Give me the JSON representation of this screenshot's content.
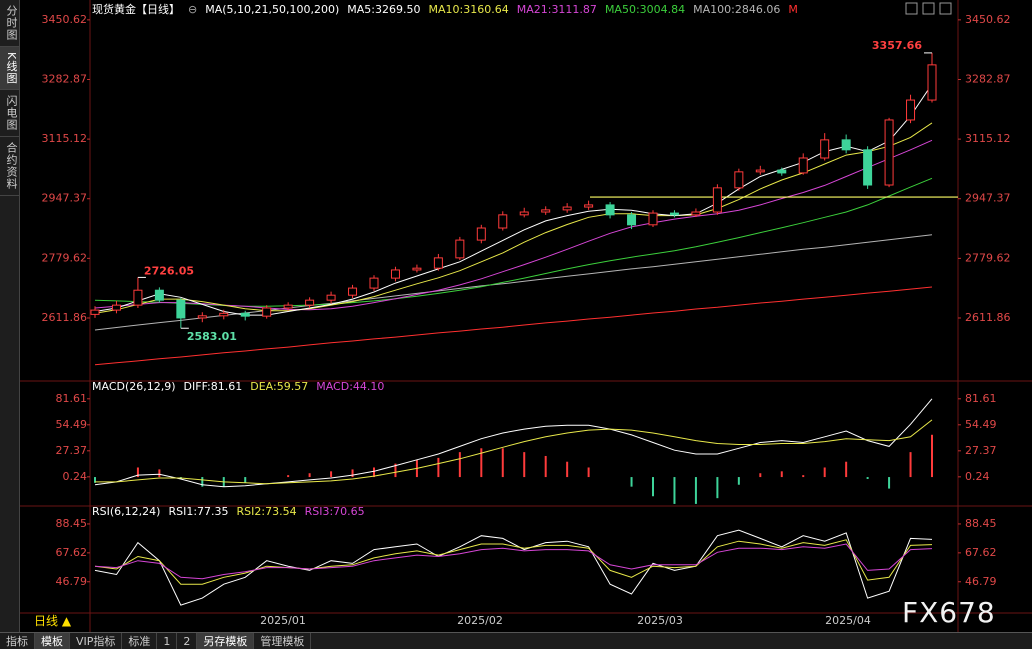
{
  "ui": {
    "sidebar": [
      "分时图",
      "K线图",
      "闪电图",
      "合约资料"
    ],
    "period": "日线 ▲",
    "tabs": [
      "指标",
      "模板",
      "VIP指标",
      "标准",
      "1",
      "2",
      "另存模板",
      "管理模板"
    ],
    "watermark": "FX678"
  },
  "chart_data": [
    {
      "type": "candlestick",
      "title": "现货黄金【日线】",
      "legend_icon": "⊖",
      "legend_title": "MA(5,10,21,50,100,200)",
      "x_tick_labels": [
        "2025/01",
        "2025/02",
        "2025/03",
        "2025/04"
      ],
      "up_color": "#ff3b3b",
      "down_color": "#3ed49a",
      "open": [
        2622,
        2634,
        2648,
        2690,
        2662,
        2612,
        2618,
        2625,
        2617,
        2640,
        2648,
        2662,
        2676,
        2696,
        2724,
        2747,
        2752,
        2781,
        2831,
        2865,
        2902,
        2910,
        2916,
        2924,
        2930,
        2902,
        2874,
        2907,
        2902,
        2910,
        2978,
        3023,
        3028,
        3020,
        3062,
        3113,
        3085,
        2986,
        3169,
        3225
      ],
      "high": [
        2645,
        2660,
        2726.05,
        2698,
        2668,
        2628,
        2635,
        2632,
        2648,
        2656,
        2670,
        2686,
        2705,
        2732,
        2756,
        2762,
        2792,
        2840,
        2874,
        2912,
        2922,
        2926,
        2935,
        2942,
        2938,
        2910,
        2915,
        2915,
        2920,
        2988,
        3032,
        3040,
        3035,
        3075,
        3132,
        3128,
        3095,
        3175,
        3240,
        3357.66
      ],
      "low": [
        2612,
        2625,
        2640,
        2655,
        2583.01,
        2600,
        2608,
        2605,
        2610,
        2632,
        2640,
        2652,
        2668,
        2688,
        2715,
        2740,
        2745,
        2775,
        2822,
        2858,
        2895,
        2902,
        2908,
        2916,
        2892,
        2862,
        2868,
        2895,
        2896,
        2902,
        2970,
        3015,
        3012,
        3015,
        3055,
        3075,
        2975,
        2980,
        3160,
        3218
      ],
      "close": [
        2634,
        2648,
        2690,
        2662,
        2612,
        2618,
        2625,
        2617,
        2640,
        2648,
        2662,
        2676,
        2696,
        2724,
        2747,
        2752,
        2781,
        2831,
        2865,
        2902,
        2910,
        2916,
        2924,
        2930,
        2902,
        2874,
        2907,
        2902,
        2910,
        2978,
        3023,
        3028,
        3020,
        3062,
        3113,
        3085,
        2986,
        3169,
        3225,
        3324
      ],
      "series": [
        {
          "name": "MA5:3269.50",
          "color": "#ffffff",
          "values": [
            2630,
            2640,
            2660,
            2680,
            2670,
            2650,
            2630,
            2620,
            2620,
            2630,
            2640,
            2650,
            2665,
            2685,
            2710,
            2730,
            2750,
            2770,
            2800,
            2830,
            2860,
            2885,
            2900,
            2912,
            2918,
            2915,
            2905,
            2900,
            2905,
            2935,
            2975,
            3010,
            3030,
            3050,
            3080,
            3095,
            3080,
            3110,
            3180,
            3269.5
          ]
        },
        {
          "name": "MA10:3160.64",
          "color": "#e8e84a",
          "values": [
            2625,
            2635,
            2650,
            2665,
            2665,
            2658,
            2648,
            2638,
            2632,
            2632,
            2638,
            2648,
            2658,
            2672,
            2690,
            2708,
            2725,
            2745,
            2770,
            2795,
            2825,
            2852,
            2875,
            2895,
            2905,
            2905,
            2900,
            2900,
            2902,
            2920,
            2945,
            2975,
            3000,
            3020,
            3045,
            3070,
            3080,
            3095,
            3120,
            3160.64
          ]
        },
        {
          "name": "MA21:3111.87",
          "color": "#d646d6",
          "values": [
            2640,
            2645,
            2650,
            2655,
            2655,
            2652,
            2648,
            2645,
            2640,
            2636,
            2635,
            2638,
            2645,
            2655,
            2666,
            2678,
            2690,
            2705,
            2722,
            2742,
            2762,
            2783,
            2805,
            2828,
            2850,
            2868,
            2880,
            2890,
            2898,
            2905,
            2915,
            2930,
            2948,
            2965,
            2985,
            3010,
            3035,
            3060,
            3085,
            3111.87
          ]
        },
        {
          "name": "MA50:3004.84",
          "color": "#3ccf3c",
          "values": [
            2662,
            2660,
            2658,
            2656,
            2653,
            2650,
            2647,
            2645,
            2645,
            2646,
            2648,
            2651,
            2655,
            2660,
            2666,
            2673,
            2681,
            2690,
            2700,
            2712,
            2724,
            2737,
            2750,
            2762,
            2773,
            2783,
            2792,
            2801,
            2812,
            2825,
            2838,
            2852,
            2866,
            2880,
            2895,
            2910,
            2930,
            2955,
            2980,
            3004.84
          ]
        },
        {
          "name": "MA100:2846.06",
          "color": "#b4b4b4",
          "values": [
            2578,
            2585,
            2592,
            2599,
            2605,
            2612,
            2619,
            2626,
            2633,
            2640,
            2647,
            2653,
            2660,
            2667,
            2674,
            2681,
            2688,
            2695,
            2702,
            2708,
            2715,
            2722,
            2729,
            2736,
            2743,
            2750,
            2756,
            2763,
            2770,
            2777,
            2784,
            2791,
            2798,
            2805,
            2811,
            2818,
            2825,
            2832,
            2839,
            2846.06
          ]
        },
        {
          "name": "M",
          "color": "#ff3030",
          "values": [
            2480,
            2486,
            2491,
            2497,
            2502,
            2508,
            2514,
            2519,
            2525,
            2530,
            2536,
            2542,
            2547,
            2553,
            2558,
            2564,
            2570,
            2575,
            2581,
            2586,
            2592,
            2598,
            2603,
            2609,
            2614,
            2620,
            2626,
            2631,
            2637,
            2642,
            2648,
            2654,
            2659,
            2665,
            2670,
            2676,
            2682,
            2687,
            2693,
            2699
          ]
        }
      ],
      "annotations": [
        3357.66,
        2726.05,
        2583.01
      ],
      "hline": 2952,
      "hline_color": "#ffff66",
      "ylim": [
        2443,
        3484
      ],
      "yticks": [
        2611.86,
        2779.62,
        2947.37,
        3115.12,
        3282.87,
        3450.62
      ]
    },
    {
      "type": "macd",
      "title": "MACD(26,12,9)",
      "series": [
        {
          "name": "DIFF:81.61",
          "color": "#ffffff",
          "values": [
            -8,
            -5,
            2,
            3,
            -2,
            -8,
            -10,
            -9,
            -7,
            -5,
            -3,
            -1,
            2,
            6,
            12,
            18,
            24,
            32,
            40,
            46,
            50,
            53,
            54,
            54,
            50,
            44,
            36,
            28,
            24,
            24,
            30,
            36,
            38,
            36,
            42,
            48,
            38,
            32,
            55,
            81.61
          ]
        },
        {
          "name": "DEA:59.57",
          "color": "#e8e84a",
          "values": [
            -5,
            -5,
            -3,
            -1,
            -1,
            -3,
            -5,
            -6,
            -7,
            -6,
            -5,
            -4,
            -2,
            1,
            5,
            9,
            14,
            19,
            25,
            31,
            37,
            42,
            46,
            49,
            50,
            49,
            46,
            42,
            38,
            35,
            34,
            34,
            35,
            35,
            37,
            40,
            39,
            38,
            42,
            59.57
          ]
        },
        {
          "name": "MACD:44.10",
          "color": "#d646d6",
          "bars": true,
          "values": [
            -6,
            0,
            10,
            8,
            -2,
            -10,
            -10,
            -6,
            0,
            2,
            4,
            6,
            8,
            10,
            14,
            18,
            20,
            26,
            30,
            30,
            26,
            22,
            16,
            10,
            0,
            -10,
            -20,
            -28,
            -28,
            -22,
            -8,
            4,
            6,
            2,
            10,
            16,
            -2,
            -12,
            26,
            44.1
          ]
        }
      ],
      "up_color": "#ff3b3b",
      "down_color": "#3ed49a",
      "ylim": [
        -26,
        96
      ],
      "yticks": [
        0.24,
        27.37,
        54.49,
        81.61
      ]
    },
    {
      "type": "line",
      "title": "RSI(6,12,24)",
      "series": [
        {
          "name": "RSI1:77.35",
          "color": "#ffffff",
          "values": [
            55,
            52,
            75,
            62,
            30,
            35,
            45,
            50,
            62,
            58,
            55,
            62,
            60,
            70,
            72,
            74,
            65,
            72,
            80,
            78,
            70,
            75,
            76,
            72,
            45,
            38,
            60,
            55,
            58,
            80,
            84,
            78,
            72,
            80,
            76,
            82,
            35,
            40,
            78,
            77.35
          ]
        },
        {
          "name": "RSI2:73.54",
          "color": "#e8e84a",
          "values": [
            58,
            56,
            65,
            62,
            45,
            45,
            50,
            53,
            58,
            57,
            56,
            58,
            59,
            64,
            67,
            69,
            66,
            70,
            74,
            74,
            71,
            73,
            73,
            71,
            55,
            50,
            58,
            57,
            58,
            72,
            76,
            74,
            71,
            75,
            73,
            77,
            48,
            50,
            73,
            73.54
          ]
        },
        {
          "name": "RSI3:70.65",
          "color": "#d646d6",
          "values": [
            58,
            57,
            62,
            60,
            50,
            49,
            52,
            54,
            57,
            57,
            56,
            57,
            58,
            62,
            64,
            66,
            65,
            67,
            70,
            71,
            69,
            70,
            70,
            69,
            59,
            56,
            59,
            59,
            59,
            68,
            71,
            71,
            70,
            72,
            71,
            74,
            55,
            56,
            70,
            70.65
          ]
        }
      ],
      "ylim": [
        25,
        98.5
      ],
      "yticks": [
        46.79,
        67.62,
        88.45
      ]
    }
  ]
}
